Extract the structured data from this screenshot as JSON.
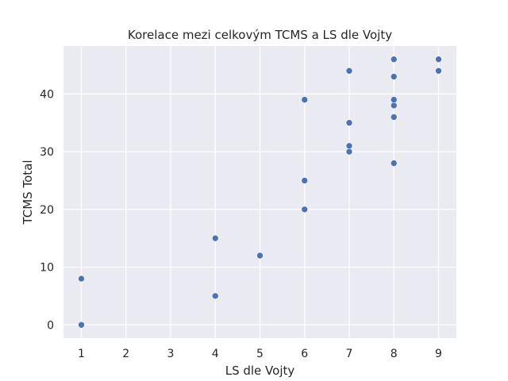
{
  "chart_data": {
    "type": "scatter",
    "title": "Korelace mezi celkovým TCMS a LS dle Vojty",
    "xlabel": "LS dle Vojty",
    "ylabel": "TCMS Total",
    "xlim": [
      0.6,
      9.4
    ],
    "ylim": [
      -2.3,
      48.3
    ],
    "xticks": [
      1,
      2,
      3,
      4,
      5,
      6,
      7,
      8,
      9
    ],
    "yticks": [
      0,
      10,
      20,
      30,
      40
    ],
    "grid": true,
    "background": "#eaeaf2",
    "grid_color": "#ffffff",
    "point_color": "#4c72b0",
    "series": [
      {
        "points": [
          [
            1,
            0
          ],
          [
            1,
            8
          ],
          [
            4,
            5
          ],
          [
            4,
            15
          ],
          [
            5,
            12
          ],
          [
            6,
            20
          ],
          [
            6,
            25
          ],
          [
            6,
            39
          ],
          [
            7,
            30
          ],
          [
            7,
            31
          ],
          [
            7,
            35
          ],
          [
            7,
            44
          ],
          [
            8,
            28
          ],
          [
            8,
            36
          ],
          [
            8,
            38
          ],
          [
            8,
            39
          ],
          [
            8,
            43
          ],
          [
            8,
            46
          ],
          [
            9,
            44
          ],
          [
            9,
            46
          ]
        ]
      }
    ]
  }
}
